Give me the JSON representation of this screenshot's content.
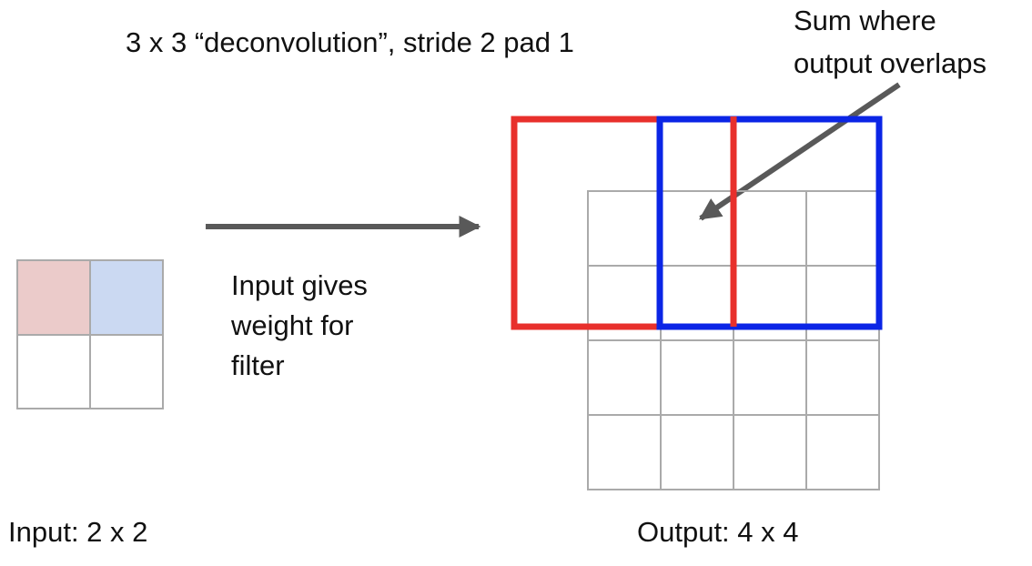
{
  "title": "3 x 3 “deconvolution”, stride 2 pad 1",
  "annotation": {
    "line1": "Sum where",
    "line2": "output overlaps"
  },
  "description": {
    "line1": "Input gives",
    "line2": "weight for",
    "line3": "filter"
  },
  "input_label": "Input: 2 x 2",
  "output_label": "Output: 4 x 4",
  "colors": {
    "input_cell_red": "#ebcbca",
    "input_cell_blue": "#cbd9f2",
    "filter_red": "#e8302c",
    "filter_blue": "#0b25e6",
    "grid": "#aaaaaa",
    "arrow": "#595959"
  }
}
